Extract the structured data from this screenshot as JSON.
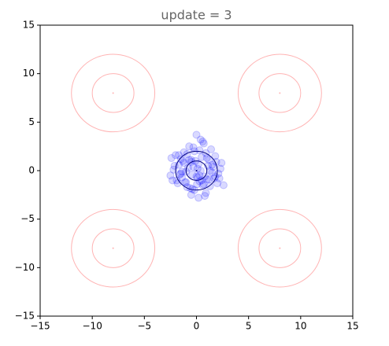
{
  "chart_data": {
    "type": "scatter",
    "title": "update = 3",
    "xlim": [
      -15,
      15
    ],
    "ylim": [
      -15,
      15
    ],
    "xticks": [
      {
        "value": -15,
        "label": "−15"
      },
      {
        "value": -10,
        "label": "−10"
      },
      {
        "value": -5,
        "label": "−5"
      },
      0,
      5,
      10,
      15
    ],
    "yticks": [
      {
        "value": -15,
        "label": "−15"
      },
      {
        "value": -10,
        "label": "−10"
      },
      {
        "value": -5,
        "label": "−5"
      },
      0,
      5,
      10,
      15
    ],
    "series": [
      {
        "color": "#0000ff",
        "x": [
          0.1,
          -0.5,
          0.8,
          1.2,
          -1.1,
          0.3,
          -0.2,
          1.6,
          -1.7,
          0.6,
          -0.9,
          2.1,
          -2.2,
          0.0,
          1.0,
          -0.4,
          0.5,
          -1.4,
          1.8,
          -0.7,
          0.9,
          -1.9,
          2.4,
          -2.5,
          0.2,
          1.3,
          -1.2,
          0.4,
          -0.1,
          0.7,
          -0.6,
          1.5,
          -1.5,
          2.0,
          -2.0,
          0.3,
          -0.3,
          1.1,
          -1.0,
          0.8,
          -0.8,
          1.7,
          -1.6,
          2.3,
          -2.3,
          0.05,
          1.4,
          -1.3,
          0.6,
          -0.5,
          2.6,
          -2.4,
          1.9,
          -1.8,
          0.2,
          0.9,
          -0.9,
          1.2,
          -1.2,
          0.0,
          0.5,
          -0.5,
          1.5,
          -1.5,
          0.3,
          -0.3,
          1.0,
          -1.0,
          2.2,
          -2.1,
          0.7,
          -0.7,
          1.3,
          -1.4,
          0.4,
          -0.4,
          1.8,
          -1.7,
          0.1,
          -0.2
        ],
        "values": [
          0.2,
          0.9,
          -0.6,
          1.1,
          -1.2,
          2.1,
          -2.0,
          0.4,
          0.6,
          -1.5,
          1.7,
          -0.3,
          0.1,
          3.7,
          -0.9,
          -0.4,
          1.4,
          -0.7,
          1.5,
          2.5,
          -2.3,
          -1.0,
          0.8,
          -0.5,
          -2.8,
          -1.6,
          1.9,
          0.0,
          1.0,
          2.8,
          -1.8,
          -0.2,
          1.2,
          -1.3,
          1.6,
          -1.1,
          2.4,
          0.5,
          -0.1,
          -2.6,
          0.3,
          -0.8,
          -0.4,
          0.2,
          -1.0,
          -1.4,
          2.2,
          1.0,
          3.0,
          -2.5,
          -1.5,
          1.3,
          0.9,
          -1.3,
          0.7,
          1.8,
          -1.7,
          -0.9,
          0.8,
          -0.6,
          -1.0,
          1.1,
          0.6,
          -0.3,
          -0.5,
          0.4,
          1.3,
          -1.2,
          -0.8,
          0.5,
          -1.4,
          1.1,
          0.0,
          -0.1,
          3.2,
          -1.9,
          -0.6,
          1.6,
          -0.7,
          2.0
        ]
      }
    ],
    "contours": [
      {
        "center": [
          -8,
          8
        ],
        "radii": [
          2,
          4
        ],
        "color": "#ffb3b3"
      },
      {
        "center": [
          8,
          8
        ],
        "radii": [
          2,
          4
        ],
        "color": "#ffb3b3"
      },
      {
        "center": [
          -8,
          -8
        ],
        "radii": [
          2,
          4
        ],
        "color": "#ffb3b3"
      },
      {
        "center": [
          8,
          -8
        ],
        "radii": [
          2,
          4
        ],
        "color": "#ffb3b3"
      },
      {
        "center": [
          0,
          0
        ],
        "radii": [
          1,
          2
        ],
        "color": "#000080"
      }
    ]
  }
}
